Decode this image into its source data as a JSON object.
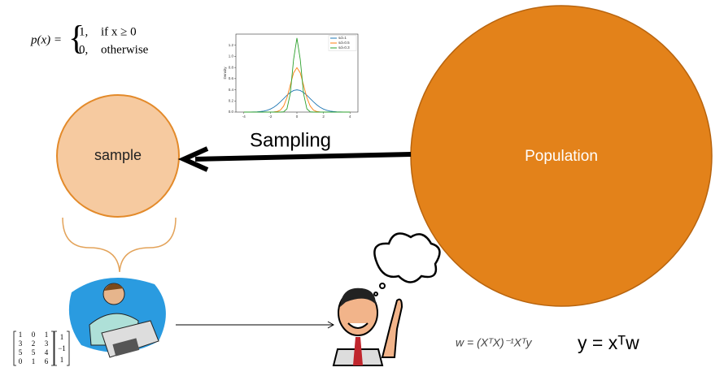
{
  "piecewise": {
    "lhs": "p(x) =",
    "cases": [
      {
        "value": "1,",
        "condition": "if x ≥ 0"
      },
      {
        "value": "0,",
        "condition": "otherwise"
      }
    ]
  },
  "density_plot": {
    "type": "line",
    "y_label": "Density",
    "x": [
      -4,
      -3.75,
      -3.5,
      -3.25,
      -3,
      -2.75,
      -2.5,
      -2.25,
      -2,
      -1.75,
      -1.5,
      -1.25,
      -1,
      -0.75,
      -0.5,
      -0.25,
      0,
      0.25,
      0.5,
      0.75,
      1,
      1.25,
      1.5,
      1.75,
      2,
      2.25,
      2.5,
      2.75,
      3,
      3.25,
      3.5,
      3.75,
      4
    ],
    "series": [
      {
        "name": "sd=1",
        "color": "#1f77b4",
        "values": [
          0,
          0,
          0.001,
          0.002,
          0.004,
          0.009,
          0.018,
          0.032,
          0.054,
          0.086,
          0.13,
          0.183,
          0.242,
          0.301,
          0.352,
          0.387,
          0.399,
          0.387,
          0.352,
          0.301,
          0.242,
          0.183,
          0.13,
          0.086,
          0.054,
          0.032,
          0.018,
          0.009,
          0.004,
          0.002,
          0.001,
          0,
          0
        ]
      },
      {
        "name": "sd=0.5",
        "color": "#ff7f0e",
        "values": [
          0,
          0,
          0,
          0,
          0,
          0,
          0,
          0,
          0,
          0.002,
          0.009,
          0.035,
          0.108,
          0.259,
          0.484,
          0.704,
          0.798,
          0.704,
          0.484,
          0.259,
          0.108,
          0.035,
          0.009,
          0.002,
          0,
          0,
          0,
          0,
          0,
          0,
          0,
          0,
          0
        ]
      },
      {
        "name": "sd=0.3",
        "color": "#2ca02c",
        "values": [
          0,
          0,
          0,
          0,
          0,
          0,
          0,
          0,
          0,
          0,
          0,
          0,
          0.005,
          0.058,
          0.333,
          0.946,
          1.33,
          0.946,
          0.333,
          0.058,
          0.005,
          0,
          0,
          0,
          0,
          0,
          0,
          0,
          0,
          0,
          0,
          0,
          0
        ]
      }
    ],
    "xlim": [
      -4.6,
      4.6
    ],
    "xticks": [
      -4,
      -2,
      0,
      2,
      4
    ],
    "ylim": [
      0,
      1.4
    ],
    "yticks": [
      {
        "value": 0,
        "label": "0.0"
      },
      0.2,
      0.4,
      0.6,
      0.8,
      {
        "value": 1,
        "label": "1.0"
      },
      1.2
    ],
    "legend": "upper right"
  },
  "sampling_label": "Sampling",
  "sample_label": "sample",
  "population_label": "Population",
  "matrix": {
    "rows": [
      [
        "1",
        "0",
        "1"
      ],
      [
        "3",
        "2",
        "3"
      ],
      [
        "5",
        "5",
        "4"
      ],
      [
        "0",
        "1",
        "6"
      ]
    ],
    "vector": [
      "1",
      "−1",
      "1"
    ]
  },
  "normal_equation": "w = (XᵀX)⁻¹Xᵀy",
  "model_equation": "y = xᵀw"
}
